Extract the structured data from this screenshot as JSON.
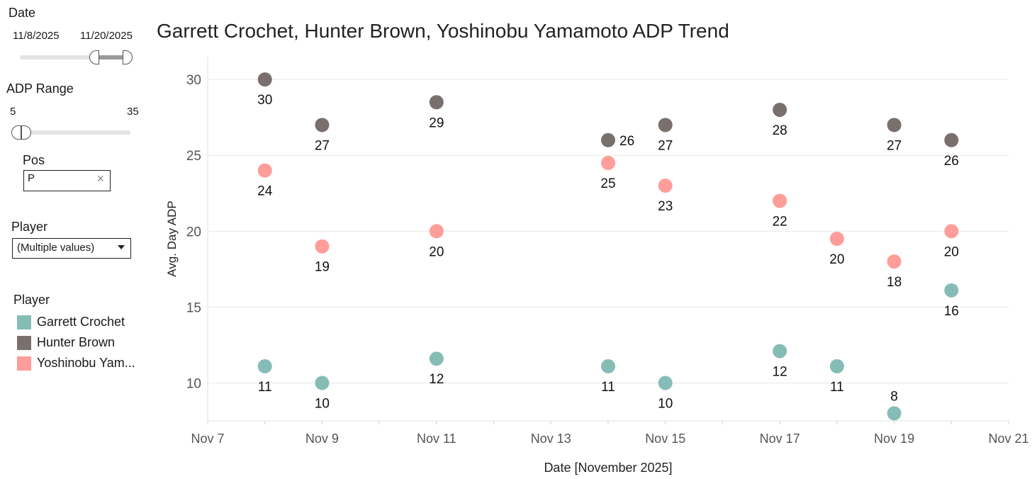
{
  "filters": {
    "date": {
      "title": "Date",
      "start": "11/8/2025",
      "end": "11/20/2025"
    },
    "adp_range": {
      "title": "ADP Range",
      "min": "5",
      "max": "35"
    },
    "pos": {
      "title": "Pos",
      "value": "P",
      "clear_icon": "×"
    },
    "player": {
      "title": "Player",
      "value": "(Multiple values)"
    }
  },
  "legend": {
    "title": "Player",
    "items": [
      {
        "label": "Garrett Crochet",
        "color": "#86bcb6"
      },
      {
        "label": "Hunter Brown",
        "color": "#79706e"
      },
      {
        "label": "Yoshinobu Yam...",
        "color": "#ff9d9a"
      }
    ]
  },
  "chart_data": {
    "type": "scatter",
    "title": "Garrett Crochet, Hunter Brown, Yoshinobu Yamamoto ADP Trend",
    "xlabel": "Date [November 2025]",
    "ylabel": "Avg. Day ADP",
    "xlim": [
      7,
      21
    ],
    "ylim": [
      7.5,
      31.5
    ],
    "x_ticks": [
      "Nov 7",
      "Nov 9",
      "Nov 11",
      "Nov 13",
      "Nov 15",
      "Nov 17",
      "Nov 19",
      "Nov 21"
    ],
    "x_tick_values": [
      7,
      9,
      11,
      13,
      15,
      17,
      19,
      21
    ],
    "y_ticks": [
      10,
      15,
      20,
      25,
      30
    ],
    "grid": true,
    "series": [
      {
        "name": "Garrett Crochet",
        "color": "#86bcb6",
        "points": [
          {
            "x": 8,
            "y": 11.1,
            "label": "11"
          },
          {
            "x": 9,
            "y": 10.0,
            "label": "10"
          },
          {
            "x": 11,
            "y": 11.6,
            "label": "12"
          },
          {
            "x": 14,
            "y": 11.1,
            "label": "11"
          },
          {
            "x": 15,
            "y": 10.0,
            "label": "10"
          },
          {
            "x": 17,
            "y": 12.1,
            "label": "12"
          },
          {
            "x": 18,
            "y": 11.1,
            "label": "11"
          },
          {
            "x": 19,
            "y": 8.0,
            "label": "8"
          },
          {
            "x": 20,
            "y": 16.1,
            "label": "16"
          }
        ]
      },
      {
        "name": "Hunter Brown",
        "color": "#79706e",
        "points": [
          {
            "x": 8,
            "y": 30.0,
            "label": "30"
          },
          {
            "x": 9,
            "y": 27.0,
            "label": "27"
          },
          {
            "x": 11,
            "y": 28.5,
            "label": "29"
          },
          {
            "x": 14,
            "y": 26.0,
            "label": "26"
          },
          {
            "x": 15,
            "y": 27.0,
            "label": "27"
          },
          {
            "x": 17,
            "y": 28.0,
            "label": "28"
          },
          {
            "x": 19,
            "y": 27.0,
            "label": "27"
          },
          {
            "x": 20,
            "y": 26.0,
            "label": "26"
          }
        ]
      },
      {
        "name": "Yoshinobu Yamamoto",
        "color": "#ff9d9a",
        "points": [
          {
            "x": 8,
            "y": 24.0,
            "label": "24"
          },
          {
            "x": 9,
            "y": 19.0,
            "label": "19"
          },
          {
            "x": 11,
            "y": 20.0,
            "label": "20"
          },
          {
            "x": 14,
            "y": 24.5,
            "label": "25"
          },
          {
            "x": 15,
            "y": 23.0,
            "label": "23"
          },
          {
            "x": 17,
            "y": 22.0,
            "label": "22"
          },
          {
            "x": 18,
            "y": 19.5,
            "label": "20"
          },
          {
            "x": 19,
            "y": 18.0,
            "label": "18"
          },
          {
            "x": 20,
            "y": 20.0,
            "label": "20"
          }
        ]
      }
    ]
  }
}
